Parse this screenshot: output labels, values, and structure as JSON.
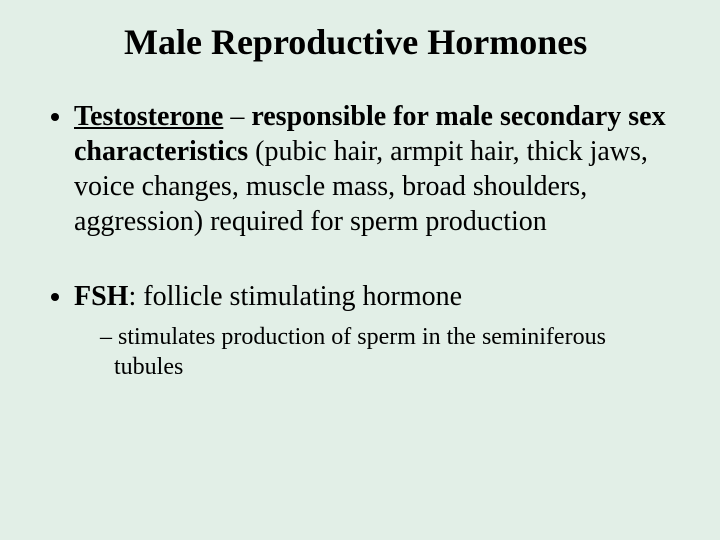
{
  "background_color": "#e2efe7",
  "text_color": "#000000",
  "font_family": "Times New Roman",
  "title": {
    "text": "Male Reproductive Hormones",
    "fontsize": 36,
    "weight": "bold"
  },
  "bullets": [
    {
      "term": "Testosterone",
      "separator": " – ",
      "phrase_bold": "responsible for male secondary sex characteristics",
      "rest": " (pubic hair, armpit hair, thick jaws, voice changes, muscle mass, broad shoulders, aggression) required for sperm production",
      "term_underline": true,
      "fontsize": 28,
      "sub": []
    },
    {
      "term": "FSH",
      "separator": ":  ",
      "phrase_bold": "",
      "rest": "follicle stimulating hormone",
      "term_underline": false,
      "fontsize": 28,
      "sub": [
        {
          "text": "stimulates production of sperm in the seminiferous tubules",
          "fontsize": 24
        }
      ]
    }
  ]
}
